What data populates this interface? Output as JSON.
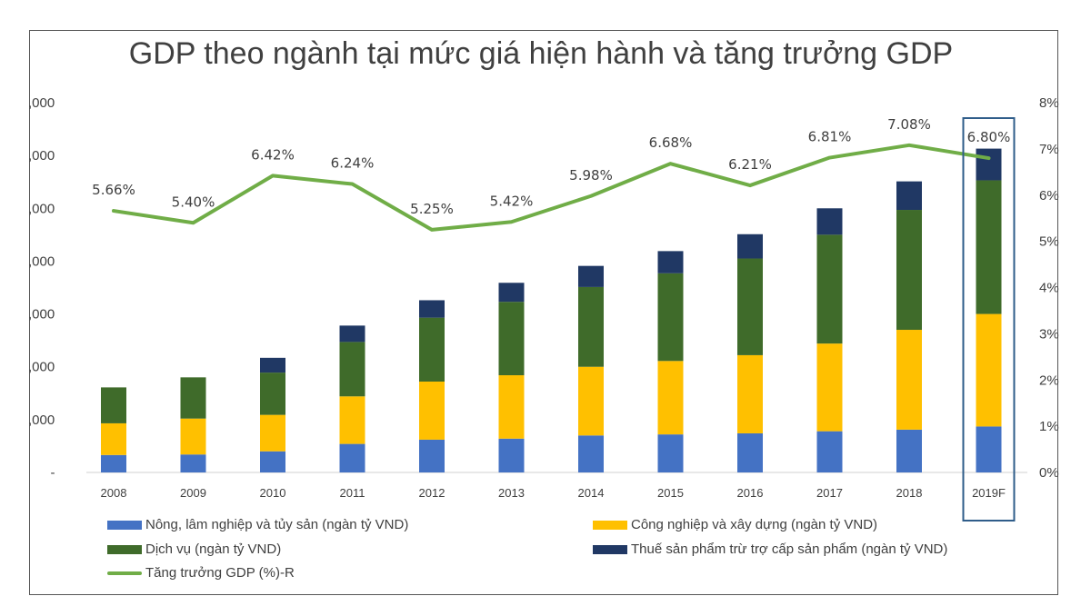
{
  "chart_data": {
    "type": "bar",
    "title": "GDP theo ngành tại mức giá hiện hành và tăng trưởng GDP",
    "categories": [
      "2008",
      "2009",
      "2010",
      "2011",
      "2012",
      "2013",
      "2014",
      "2015",
      "2016",
      "2017",
      "2018",
      "2019F"
    ],
    "stacked": true,
    "series": [
      {
        "name": "Nông, lâm nghiệp và tủy sản (ngàn tỷ VND)",
        "color": "#4472C4",
        "values": [
          330,
          340,
          400,
          540,
          620,
          640,
          700,
          720,
          740,
          780,
          810,
          870
        ]
      },
      {
        "name": "Công nghiệp và xây dựng (ngàn tỷ VND)",
        "color": "#FFC000",
        "values": [
          600,
          680,
          690,
          900,
          1100,
          1200,
          1300,
          1390,
          1480,
          1660,
          1890,
          2130
        ]
      },
      {
        "name": "Dịch vụ (ngàn tỷ VND)",
        "color": "#3F6B2A",
        "values": [
          680,
          780,
          800,
          1030,
          1210,
          1390,
          1510,
          1660,
          1830,
          2060,
          2270,
          2530
        ]
      },
      {
        "name": "Thuế sản phẩm trừ trợ cấp sản phẩm (ngàn tỷ VND)",
        "color": "#203864",
        "values": [
          0,
          0,
          280,
          310,
          330,
          360,
          400,
          420,
          460,
          500,
          540,
          600
        ]
      }
    ],
    "line_series": {
      "name": "Tăng trưởng GDP (%)-R",
      "color": "#70AD47",
      "values": [
        5.66,
        5.4,
        6.42,
        6.24,
        5.25,
        5.42,
        5.98,
        6.68,
        6.21,
        6.81,
        7.08,
        6.8
      ],
      "labels": [
        "5.66%",
        "5.40%",
        "6.42%",
        "6.24%",
        "5.25%",
        "5.42%",
        "5.98%",
        "6.68%",
        "6.21%",
        "6.81%",
        "7.08%",
        "6.80%"
      ]
    },
    "y_left": {
      "min": 0,
      "max": 7000,
      "tick_labels": [
        "-",
        ",000",
        ",000",
        ",000",
        ",000",
        ",000",
        ",000",
        ",000"
      ]
    },
    "y_right": {
      "min": 0,
      "max": 8,
      "tick_labels": [
        "0%",
        "1%",
        "2%",
        "3%",
        "4%",
        "5%",
        "6%",
        "7%",
        "8%"
      ]
    },
    "highlight_category": "2019F",
    "legend": [
      {
        "label": "Nông, lâm nghiệp và tủy sản (ngàn tỷ VND)",
        "color": "#4472C4",
        "kind": "bar"
      },
      {
        "label": "Công nghiệp và xây dựng (ngàn tỷ VND)",
        "color": "#FFC000",
        "kind": "bar"
      },
      {
        "label": "Dịch vụ (ngàn tỷ VND)",
        "color": "#3F6B2A",
        "kind": "bar"
      },
      {
        "label": "Thuế sản phẩm trừ trợ cấp sản phẩm (ngàn tỷ VND)",
        "color": "#203864",
        "kind": "bar"
      },
      {
        "label": "Tăng trưởng GDP (%)-R",
        "color": "#70AD47",
        "kind": "line"
      }
    ]
  }
}
